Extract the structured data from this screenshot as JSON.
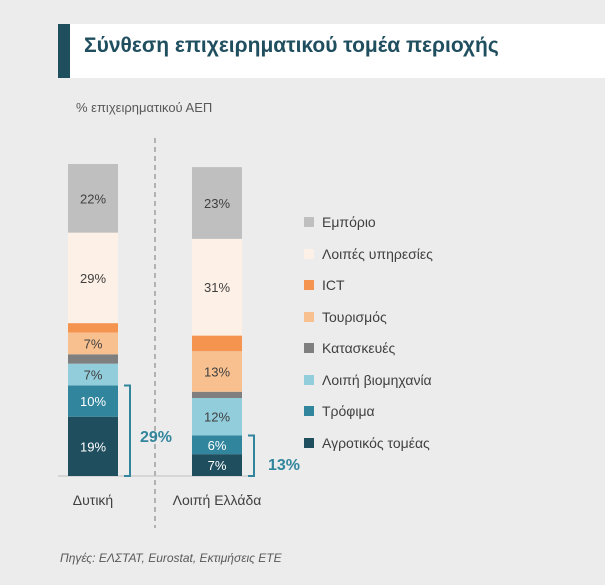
{
  "header": {
    "title": "Σύνθεση επιχειρηματικού τομέα περιοχής",
    "subtitle": "% επιχειρηματικού ΑΕΠ"
  },
  "footer": {
    "source": "Πηγές: ΕΛΣΤΑΤ, Eurostat, Εκτιμήσεις ΕΤΕ"
  },
  "legend": [
    {
      "label": "Εμπόριο",
      "color": "#bfbfbf"
    },
    {
      "label": "Λοιπές υπηρεσίες",
      "color": "#fdf0e6"
    },
    {
      "label": "ICT",
      "color": "#f4944e"
    },
    {
      "label": "Τουρισμός",
      "color": "#f8c08f"
    },
    {
      "label": "Κατασκευές",
      "color": "#7f7f7f"
    },
    {
      "label": "Λοιπή βιομηχανία",
      "color": "#92cddc"
    },
    {
      "label": "Τρόφιμα",
      "color": "#31859c"
    },
    {
      "label": "Αγροτικός τομέας",
      "color": "#1f4e5f"
    }
  ],
  "chart_data": {
    "type": "bar",
    "stacked": true,
    "categories": [
      "Δυτική",
      "Λοιπή Ελλάδα"
    ],
    "series": [
      {
        "name": "Αγροτικός τομέας",
        "values": [
          19,
          7
        ],
        "labels": [
          "19%",
          "7%"
        ]
      },
      {
        "name": "Τρόφιμα",
        "values": [
          10,
          6
        ],
        "labels": [
          "10%",
          "6%"
        ]
      },
      {
        "name": "Λοιπή βιομηχανία",
        "values": [
          7,
          12
        ],
        "labels": [
          "7%",
          "12%"
        ]
      },
      {
        "name": "Κατασκευές",
        "values": [
          3,
          2
        ],
        "labels": [
          "",
          ""
        ]
      },
      {
        "name": "Τουρισμός",
        "values": [
          7,
          13
        ],
        "labels": [
          "7%",
          "13%"
        ]
      },
      {
        "name": "ICT",
        "values": [
          3,
          5
        ],
        "labels": [
          "",
          ""
        ]
      },
      {
        "name": "Λοιπές υπηρεσίες",
        "values": [
          29,
          31
        ],
        "labels": [
          "29%",
          "31%"
        ]
      },
      {
        "name": "Εμπόριο",
        "values": [
          22,
          23
        ],
        "labels": [
          "22%",
          "23%"
        ]
      }
    ],
    "ylim": [
      0,
      100
    ],
    "annotations": [
      "29%",
      "13%"
    ]
  }
}
